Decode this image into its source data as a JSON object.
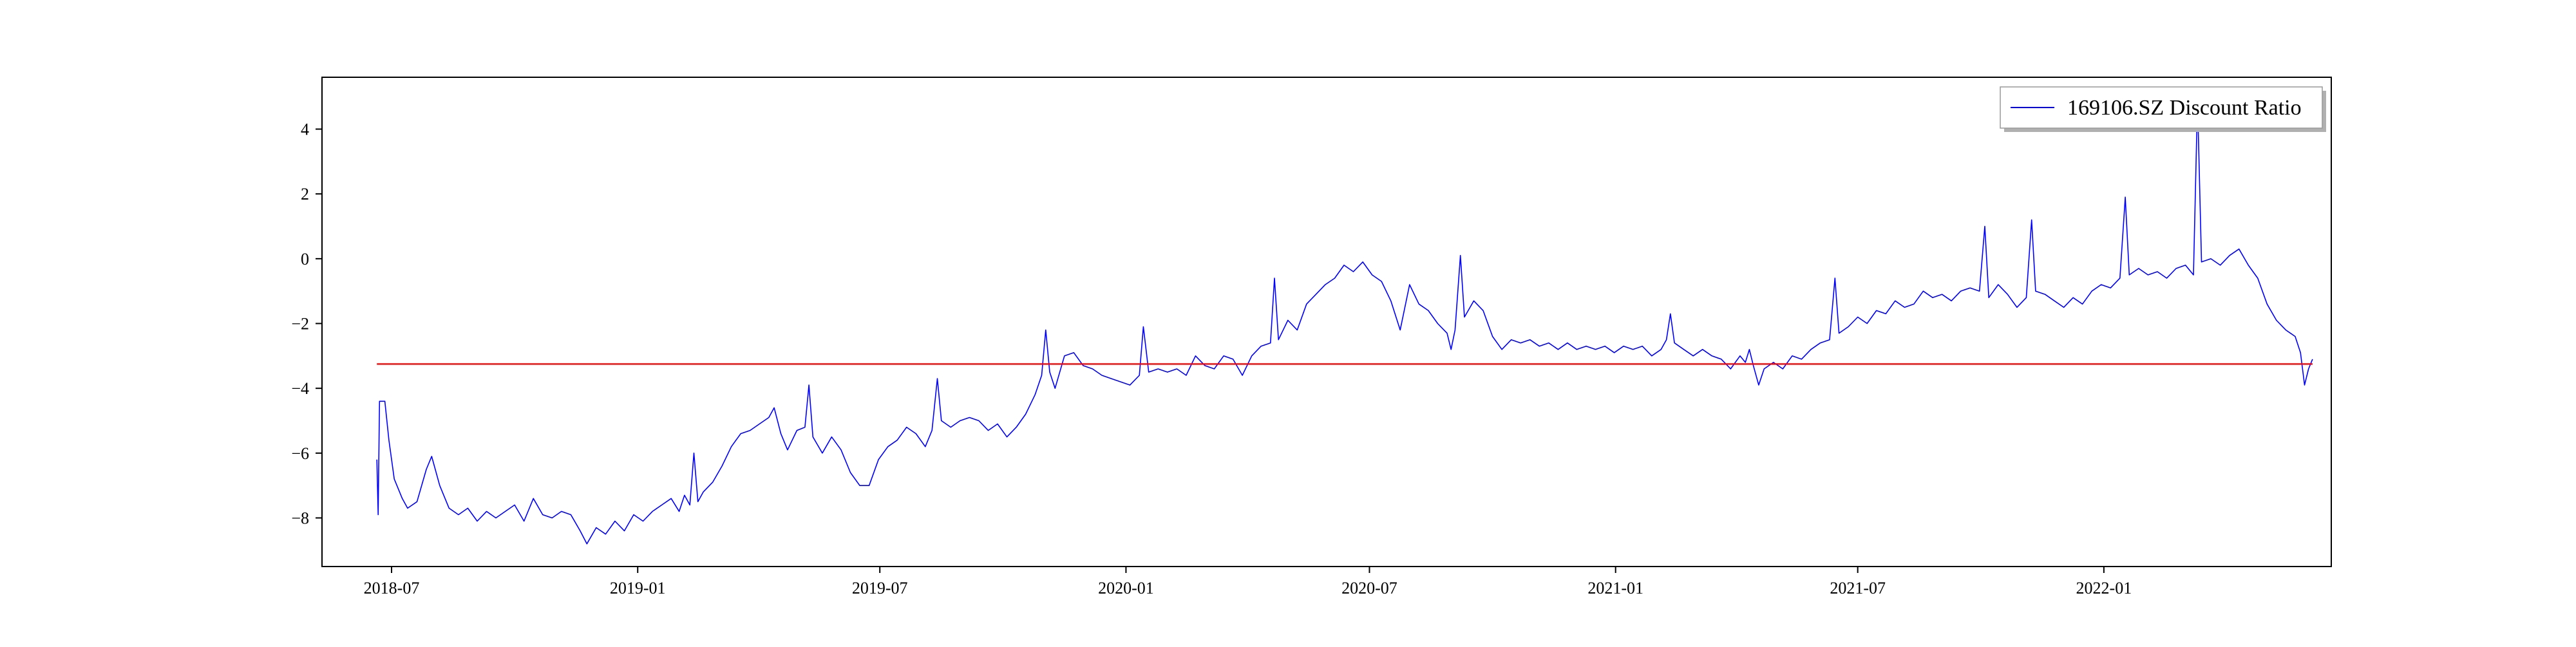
{
  "chart_data": {
    "type": "line",
    "title": "",
    "xlabel": "",
    "ylabel": "",
    "x_tick_labels": [
      "2018-07",
      "2019-01",
      "2019-07",
      "2020-01",
      "2020-07",
      "2021-01",
      "2021-07",
      "2022-01"
    ],
    "x_ticks": [
      "2018-07-01",
      "2019-01-01",
      "2019-07-01",
      "2020-01-01",
      "2020-07-01",
      "2021-01-01",
      "2021-07-01",
      "2022-01-01"
    ],
    "y_ticks": [
      -8,
      -6,
      -4,
      -2,
      0,
      2,
      4
    ],
    "xlim": [
      "2018-05-10",
      "2022-06-20"
    ],
    "ylim": [
      -9.5,
      5.6
    ],
    "grid": false,
    "legend": {
      "position": "top-right",
      "entries": [
        "169106.SZ Discount Ratio"
      ]
    },
    "series": [
      {
        "name": "169106.SZ Discount Ratio",
        "color": "#0000ff",
        "points": [
          [
            "2018-06-20",
            -6.2
          ],
          [
            "2018-06-21",
            -7.9
          ],
          [
            "2018-06-22",
            -4.4
          ],
          [
            "2018-06-26",
            -4.4
          ],
          [
            "2018-06-29",
            -5.6
          ],
          [
            "2018-07-03",
            -6.8
          ],
          [
            "2018-07-09",
            -7.4
          ],
          [
            "2018-07-13",
            -7.7
          ],
          [
            "2018-07-20",
            -7.5
          ],
          [
            "2018-07-27",
            -6.5
          ],
          [
            "2018-07-31",
            -6.1
          ],
          [
            "2018-08-06",
            -7.0
          ],
          [
            "2018-08-13",
            -7.7
          ],
          [
            "2018-08-20",
            -7.9
          ],
          [
            "2018-08-27",
            -7.7
          ],
          [
            "2018-09-03",
            -8.1
          ],
          [
            "2018-09-10",
            -7.8
          ],
          [
            "2018-09-17",
            -8.0
          ],
          [
            "2018-09-24",
            -7.8
          ],
          [
            "2018-10-01",
            -7.6
          ],
          [
            "2018-10-08",
            -8.1
          ],
          [
            "2018-10-15",
            -7.4
          ],
          [
            "2018-10-22",
            -7.9
          ],
          [
            "2018-10-29",
            -8.0
          ],
          [
            "2018-11-05",
            -7.8
          ],
          [
            "2018-11-12",
            -7.9
          ],
          [
            "2018-11-19",
            -8.4
          ],
          [
            "2018-11-24",
            -8.8
          ],
          [
            "2018-12-01",
            -8.3
          ],
          [
            "2018-12-08",
            -8.5
          ],
          [
            "2018-12-15",
            -8.1
          ],
          [
            "2018-12-22",
            -8.4
          ],
          [
            "2018-12-29",
            -7.9
          ],
          [
            "2019-01-05",
            -8.1
          ],
          [
            "2019-01-12",
            -7.8
          ],
          [
            "2019-01-19",
            -7.6
          ],
          [
            "2019-01-26",
            -7.4
          ],
          [
            "2019-02-01",
            -7.8
          ],
          [
            "2019-02-05",
            -7.3
          ],
          [
            "2019-02-09",
            -7.6
          ],
          [
            "2019-02-12",
            -6.0
          ],
          [
            "2019-02-15",
            -7.5
          ],
          [
            "2019-02-19",
            -7.2
          ],
          [
            "2019-02-26",
            -6.9
          ],
          [
            "2019-03-05",
            -6.4
          ],
          [
            "2019-03-12",
            -5.8
          ],
          [
            "2019-03-19",
            -5.4
          ],
          [
            "2019-03-26",
            -5.3
          ],
          [
            "2019-04-02",
            -5.1
          ],
          [
            "2019-04-09",
            -4.9
          ],
          [
            "2019-04-13",
            -4.6
          ],
          [
            "2019-04-18",
            -5.4
          ],
          [
            "2019-04-23",
            -5.9
          ],
          [
            "2019-04-30",
            -5.3
          ],
          [
            "2019-05-06",
            -5.2
          ],
          [
            "2019-05-09",
            -3.9
          ],
          [
            "2019-05-12",
            -5.5
          ],
          [
            "2019-05-19",
            -6.0
          ],
          [
            "2019-05-26",
            -5.5
          ],
          [
            "2019-06-02",
            -5.9
          ],
          [
            "2019-06-09",
            -6.6
          ],
          [
            "2019-06-16",
            -7.0
          ],
          [
            "2019-06-23",
            -7.0
          ],
          [
            "2019-06-30",
            -6.2
          ],
          [
            "2019-07-07",
            -5.8
          ],
          [
            "2019-07-14",
            -5.6
          ],
          [
            "2019-07-21",
            -5.2
          ],
          [
            "2019-07-28",
            -5.4
          ],
          [
            "2019-08-04",
            -5.8
          ],
          [
            "2019-08-09",
            -5.3
          ],
          [
            "2019-08-13",
            -3.7
          ],
          [
            "2019-08-16",
            -5.0
          ],
          [
            "2019-08-23",
            -5.2
          ],
          [
            "2019-08-30",
            -5.0
          ],
          [
            "2019-09-06",
            -4.9
          ],
          [
            "2019-09-13",
            -5.0
          ],
          [
            "2019-09-20",
            -5.3
          ],
          [
            "2019-09-27",
            -5.1
          ],
          [
            "2019-10-04",
            -5.5
          ],
          [
            "2019-10-11",
            -5.2
          ],
          [
            "2019-10-18",
            -4.8
          ],
          [
            "2019-10-25",
            -4.2
          ],
          [
            "2019-10-30",
            -3.6
          ],
          [
            "2019-11-02",
            -2.2
          ],
          [
            "2019-11-05",
            -3.5
          ],
          [
            "2019-11-09",
            -4.0
          ],
          [
            "2019-11-16",
            -3.0
          ],
          [
            "2019-11-23",
            -2.9
          ],
          [
            "2019-11-30",
            -3.3
          ],
          [
            "2019-12-07",
            -3.4
          ],
          [
            "2019-12-14",
            -3.6
          ],
          [
            "2019-12-21",
            -3.7
          ],
          [
            "2019-12-28",
            -3.8
          ],
          [
            "2020-01-04",
            -3.9
          ],
          [
            "2020-01-11",
            -3.6
          ],
          [
            "2020-01-14",
            -2.1
          ],
          [
            "2020-01-18",
            -3.5
          ],
          [
            "2020-01-25",
            -3.4
          ],
          [
            "2020-02-01",
            -3.5
          ],
          [
            "2020-02-08",
            -3.4
          ],
          [
            "2020-02-15",
            -3.6
          ],
          [
            "2020-02-22",
            -3.0
          ],
          [
            "2020-02-29",
            -3.3
          ],
          [
            "2020-03-07",
            -3.4
          ],
          [
            "2020-03-14",
            -3.0
          ],
          [
            "2020-03-21",
            -3.1
          ],
          [
            "2020-03-28",
            -3.6
          ],
          [
            "2020-04-04",
            -3.0
          ],
          [
            "2020-04-11",
            -2.7
          ],
          [
            "2020-04-18",
            -2.6
          ],
          [
            "2020-04-21",
            -0.6
          ],
          [
            "2020-04-24",
            -2.5
          ],
          [
            "2020-05-01",
            -1.9
          ],
          [
            "2020-05-08",
            -2.2
          ],
          [
            "2020-05-15",
            -1.4
          ],
          [
            "2020-05-22",
            -1.1
          ],
          [
            "2020-05-29",
            -0.8
          ],
          [
            "2020-06-05",
            -0.6
          ],
          [
            "2020-06-12",
            -0.2
          ],
          [
            "2020-06-19",
            -0.4
          ],
          [
            "2020-06-26",
            -0.1
          ],
          [
            "2020-07-03",
            -0.5
          ],
          [
            "2020-07-10",
            -0.7
          ],
          [
            "2020-07-17",
            -1.3
          ],
          [
            "2020-07-24",
            -2.2
          ],
          [
            "2020-07-31",
            -0.8
          ],
          [
            "2020-08-07",
            -1.4
          ],
          [
            "2020-08-14",
            -1.6
          ],
          [
            "2020-08-21",
            -2.0
          ],
          [
            "2020-08-28",
            -2.3
          ],
          [
            "2020-08-31",
            -2.8
          ],
          [
            "2020-09-03",
            -2.2
          ],
          [
            "2020-09-07",
            0.1
          ],
          [
            "2020-09-10",
            -1.8
          ],
          [
            "2020-09-17",
            -1.3
          ],
          [
            "2020-09-24",
            -1.6
          ],
          [
            "2020-10-01",
            -2.4
          ],
          [
            "2020-10-08",
            -2.8
          ],
          [
            "2020-10-15",
            -2.5
          ],
          [
            "2020-10-22",
            -2.6
          ],
          [
            "2020-10-29",
            -2.5
          ],
          [
            "2020-11-05",
            -2.7
          ],
          [
            "2020-11-12",
            -2.6
          ],
          [
            "2020-11-19",
            -2.8
          ],
          [
            "2020-11-26",
            -2.6
          ],
          [
            "2020-12-03",
            -2.8
          ],
          [
            "2020-12-10",
            -2.7
          ],
          [
            "2020-12-17",
            -2.8
          ],
          [
            "2020-12-24",
            -2.7
          ],
          [
            "2020-12-31",
            -2.9
          ],
          [
            "2021-01-07",
            -2.7
          ],
          [
            "2021-01-14",
            -2.8
          ],
          [
            "2021-01-21",
            -2.7
          ],
          [
            "2021-01-28",
            -3.0
          ],
          [
            "2021-02-04",
            -2.8
          ],
          [
            "2021-02-08",
            -2.5
          ],
          [
            "2021-02-11",
            -1.7
          ],
          [
            "2021-02-14",
            -2.6
          ],
          [
            "2021-02-21",
            -2.8
          ],
          [
            "2021-02-28",
            -3.0
          ],
          [
            "2021-03-07",
            -2.8
          ],
          [
            "2021-03-14",
            -3.0
          ],
          [
            "2021-03-21",
            -3.1
          ],
          [
            "2021-03-28",
            -3.4
          ],
          [
            "2021-04-04",
            -3.0
          ],
          [
            "2021-04-08",
            -3.2
          ],
          [
            "2021-04-11",
            -2.8
          ],
          [
            "2021-04-14",
            -3.3
          ],
          [
            "2021-04-18",
            -3.9
          ],
          [
            "2021-04-22",
            -3.4
          ],
          [
            "2021-04-29",
            -3.2
          ],
          [
            "2021-05-06",
            -3.4
          ],
          [
            "2021-05-13",
            -3.0
          ],
          [
            "2021-05-20",
            -3.1
          ],
          [
            "2021-05-27",
            -2.8
          ],
          [
            "2021-06-03",
            -2.6
          ],
          [
            "2021-06-10",
            -2.5
          ],
          [
            "2021-06-14",
            -0.6
          ],
          [
            "2021-06-17",
            -2.3
          ],
          [
            "2021-06-24",
            -2.1
          ],
          [
            "2021-07-01",
            -1.8
          ],
          [
            "2021-07-08",
            -2.0
          ],
          [
            "2021-07-15",
            -1.6
          ],
          [
            "2021-07-22",
            -1.7
          ],
          [
            "2021-07-29",
            -1.3
          ],
          [
            "2021-08-05",
            -1.5
          ],
          [
            "2021-08-12",
            -1.4
          ],
          [
            "2021-08-19",
            -1.0
          ],
          [
            "2021-08-26",
            -1.2
          ],
          [
            "2021-09-02",
            -1.1
          ],
          [
            "2021-09-09",
            -1.3
          ],
          [
            "2021-09-16",
            -1.0
          ],
          [
            "2021-09-23",
            -0.9
          ],
          [
            "2021-09-30",
            -1.0
          ],
          [
            "2021-10-04",
            1.0
          ],
          [
            "2021-10-07",
            -1.2
          ],
          [
            "2021-10-14",
            -0.8
          ],
          [
            "2021-10-21",
            -1.1
          ],
          [
            "2021-10-28",
            -1.5
          ],
          [
            "2021-11-04",
            -1.2
          ],
          [
            "2021-11-08",
            1.2
          ],
          [
            "2021-11-11",
            -1.0
          ],
          [
            "2021-11-18",
            -1.1
          ],
          [
            "2021-11-25",
            -1.3
          ],
          [
            "2021-12-02",
            -1.5
          ],
          [
            "2021-12-09",
            -1.2
          ],
          [
            "2021-12-16",
            -1.4
          ],
          [
            "2021-12-23",
            -1.0
          ],
          [
            "2021-12-30",
            -0.8
          ],
          [
            "2022-01-06",
            -0.9
          ],
          [
            "2022-01-13",
            -0.6
          ],
          [
            "2022-01-17",
            1.9
          ],
          [
            "2022-01-20",
            -0.5
          ],
          [
            "2022-01-27",
            -0.3
          ],
          [
            "2022-02-03",
            -0.5
          ],
          [
            "2022-02-10",
            -0.4
          ],
          [
            "2022-02-17",
            -0.6
          ],
          [
            "2022-02-24",
            -0.3
          ],
          [
            "2022-03-03",
            -0.2
          ],
          [
            "2022-03-09",
            -0.5
          ],
          [
            "2022-03-12",
            4.9
          ],
          [
            "2022-03-15",
            -0.1
          ],
          [
            "2022-03-22",
            0.0
          ],
          [
            "2022-03-29",
            -0.2
          ],
          [
            "2022-04-05",
            0.1
          ],
          [
            "2022-04-12",
            0.3
          ],
          [
            "2022-04-19",
            -0.2
          ],
          [
            "2022-04-26",
            -0.6
          ],
          [
            "2022-05-03",
            -1.4
          ],
          [
            "2022-05-10",
            -1.9
          ],
          [
            "2022-05-17",
            -2.2
          ],
          [
            "2022-05-24",
            -2.4
          ],
          [
            "2022-05-28",
            -2.9
          ],
          [
            "2022-05-31",
            -3.9
          ],
          [
            "2022-06-03",
            -3.4
          ],
          [
            "2022-06-06",
            -3.1
          ]
        ]
      },
      {
        "name": "",
        "color": "#ff0000",
        "points": [
          [
            "2018-06-20",
            -3.25
          ],
          [
            "2022-06-06",
            -3.25
          ]
        ]
      }
    ]
  }
}
